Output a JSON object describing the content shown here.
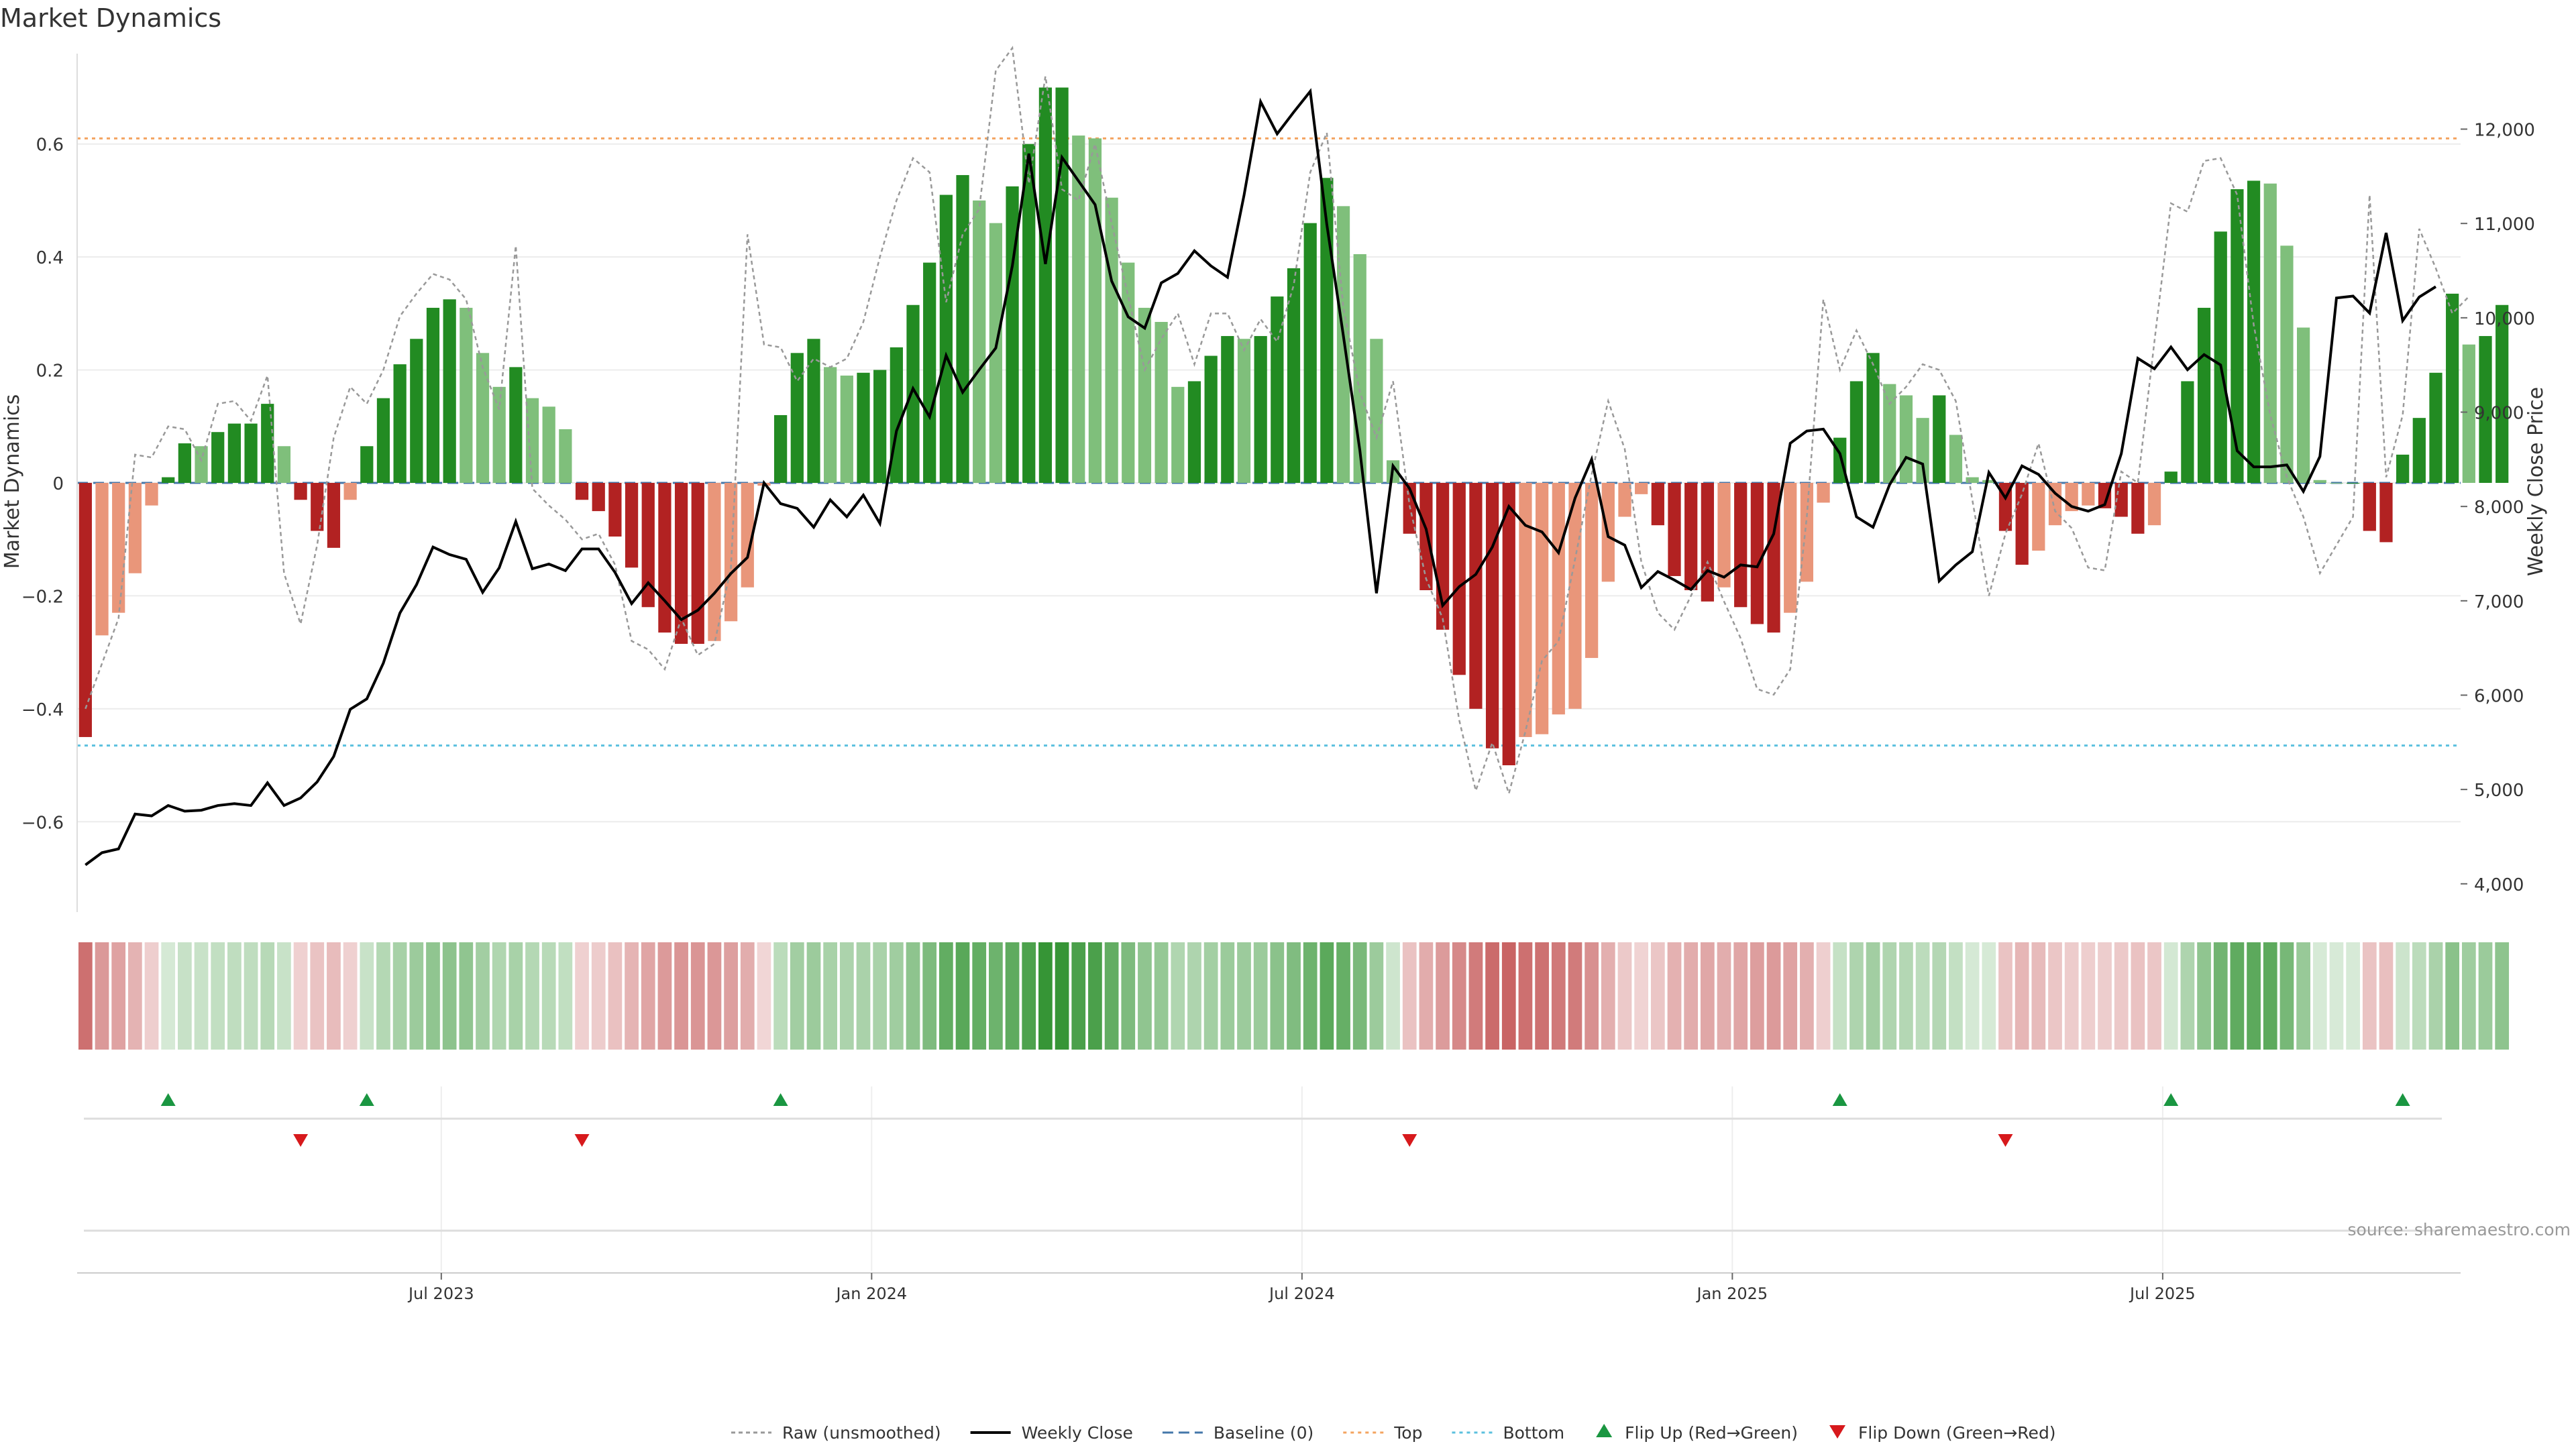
{
  "header": {
    "title": "Market Dynamics"
  },
  "footer": {
    "source": "source: sharemaestro.com"
  },
  "legend": [
    {
      "label": "Raw (unsmoothed)",
      "kind": "raw"
    },
    {
      "label": "Weekly Close",
      "kind": "close"
    },
    {
      "label": "Baseline (0)",
      "kind": "baseline"
    },
    {
      "label": "Top",
      "kind": "top"
    },
    {
      "label": "Bottom",
      "kind": "bottom"
    },
    {
      "label": "Flip Up (Red→Green)",
      "kind": "flipup"
    },
    {
      "label": "Flip Down (Green→Red)",
      "kind": "flipdown"
    }
  ],
  "colors": {
    "strong_green": "#228b22",
    "light_green": "#7fbf7b",
    "strong_red": "#b22222",
    "light_red": "#e9967a",
    "close_line": "#000000",
    "raw_line": "#999999",
    "baseline": "#4477aa",
    "top": "#f4a460",
    "bottom": "#5bc0de",
    "flip_up": "#1a9641",
    "flip_down": "#d7191c"
  },
  "chart_data": {
    "type": "bar",
    "title": "Market Dynamics",
    "ylabel": "Market Dynamics",
    "y2label": "Weekly Close Price",
    "ylim": [
      -0.76,
      0.76
    ],
    "y2lim": [
      3700,
      12800
    ],
    "yticks": [
      -0.6,
      -0.4,
      -0.2,
      0,
      0.2,
      0.4,
      0.6
    ],
    "yticklabels": [
      "−0.6",
      "−0.4",
      "−0.2",
      "0",
      "0.2",
      "0.4",
      "0.6"
    ],
    "y2ticks": [
      4000,
      5000,
      6000,
      7000,
      8000,
      9000,
      10000,
      11000,
      12000
    ],
    "y2ticklabels": [
      "4,000",
      "5,000",
      "6,000",
      "7,000",
      "8,000",
      "9,000",
      "10,000",
      "11,000",
      "12,000"
    ],
    "xticks": [
      "Jul 2023",
      "Jan 2024",
      "Jul 2024",
      "Jan 2025",
      "Jul 2025"
    ],
    "xtick_week_index": [
      22,
      48,
      74,
      100,
      126
    ],
    "top_level": 0.61,
    "bottom_level": -0.465,
    "baseline": 0,
    "grid": true,
    "legend_position": "bottom-center",
    "weeks": 144,
    "series": [
      {
        "name": "Market Dynamics",
        "values": [
          -0.45,
          -0.27,
          -0.23,
          -0.16,
          -0.04,
          0.01,
          0.07,
          0.065,
          0.09,
          0.105,
          0.105,
          0.14,
          0.065,
          -0.03,
          -0.085,
          -0.115,
          -0.03,
          0.065,
          0.15,
          0.21,
          0.255,
          0.31,
          0.325,
          0.31,
          0.23,
          0.17,
          0.205,
          0.15,
          0.135,
          0.095,
          -0.03,
          -0.05,
          -0.095,
          -0.15,
          -0.22,
          -0.265,
          -0.285,
          -0.285,
          -0.28,
          -0.245,
          -0.185,
          -0.005,
          0.12,
          0.23,
          0.255,
          0.205,
          0.19,
          0.195,
          0.2,
          0.24,
          0.315,
          0.39,
          0.51,
          0.545,
          0.5,
          0.46,
          0.525,
          0.6,
          0.7,
          0.7,
          0.615,
          0.61,
          0.505,
          0.39,
          0.31,
          0.285,
          0.17,
          0.18,
          0.225,
          0.26,
          0.255,
          0.26,
          0.33,
          0.38,
          0.46,
          0.54,
          0.49,
          0.405,
          0.255,
          0.04,
          -0.09,
          -0.19,
          -0.26,
          -0.34,
          -0.4,
          -0.47,
          -0.5,
          -0.45,
          -0.445,
          -0.41,
          -0.4,
          -0.31,
          -0.175,
          -0.06,
          -0.02,
          -0.075,
          -0.165,
          -0.19,
          -0.21,
          -0.185,
          -0.22,
          -0.25,
          -0.265,
          -0.23,
          -0.175,
          -0.035,
          0.08,
          0.18,
          0.23,
          0.175,
          0.155,
          0.115,
          0.155,
          0.085,
          0.01,
          0.005,
          -0.085,
          -0.145,
          -0.12,
          -0.075,
          -0.05,
          -0.04,
          -0.045,
          -0.06,
          -0.09,
          -0.075,
          0.02,
          0.18,
          0.31,
          0.445,
          0.52,
          0.535,
          0.53,
          0.42,
          0.275,
          0.005,
          0.0,
          0.0,
          -0.085,
          -0.105,
          0.05,
          0.115,
          0.195,
          0.335,
          0.245,
          0.26,
          0.315
        ]
      },
      {
        "name": "Raw (unsmoothed)",
        "values": [
          -0.4,
          -0.32,
          -0.24,
          0.05,
          0.045,
          0.1,
          0.095,
          0.04,
          0.14,
          0.145,
          0.11,
          0.19,
          -0.16,
          -0.25,
          -0.11,
          0.08,
          0.17,
          0.14,
          0.2,
          0.295,
          0.335,
          0.37,
          0.36,
          0.325,
          0.205,
          0.13,
          0.42,
          -0.01,
          -0.04,
          -0.065,
          -0.1,
          -0.09,
          -0.145,
          -0.28,
          -0.295,
          -0.33,
          -0.24,
          -0.305,
          -0.285,
          -0.15,
          0.44,
          0.245,
          0.24,
          0.18,
          0.22,
          0.205,
          0.22,
          0.285,
          0.4,
          0.5,
          0.575,
          0.55,
          0.32,
          0.44,
          0.485,
          0.73,
          0.77,
          0.53,
          0.72,
          0.52,
          0.5,
          0.6,
          0.46,
          0.33,
          0.2,
          0.255,
          0.3,
          0.21,
          0.3,
          0.3,
          0.235,
          0.29,
          0.25,
          0.35,
          0.55,
          0.62,
          0.31,
          0.16,
          0.08,
          0.18,
          -0.04,
          -0.17,
          -0.24,
          -0.42,
          -0.545,
          -0.46,
          -0.55,
          -0.44,
          -0.315,
          -0.28,
          -0.135,
          0.015,
          0.145,
          0.06,
          -0.14,
          -0.23,
          -0.26,
          -0.2,
          -0.14,
          -0.21,
          -0.275,
          -0.365,
          -0.375,
          -0.33,
          -0.06,
          0.325,
          0.2,
          0.27,
          0.21,
          0.14,
          0.17,
          0.21,
          0.2,
          0.145,
          -0.03,
          -0.2,
          -0.09,
          -0.02,
          0.07,
          -0.05,
          -0.08,
          -0.15,
          -0.155,
          0.02,
          0.0,
          0.25,
          0.495,
          0.48,
          0.57,
          0.575,
          0.51,
          0.28,
          0.12,
          0.01,
          -0.06,
          -0.16,
          -0.11,
          -0.06,
          0.51,
          0.01,
          0.12,
          0.45,
          0.38,
          0.3,
          0.33
        ]
      },
      {
        "name": "Weekly Close",
        "values": [
          4200,
          4330,
          4370,
          4740,
          4720,
          4830,
          4770,
          4780,
          4830,
          4850,
          4830,
          5070,
          4830,
          4910,
          5080,
          5350,
          5850,
          5960,
          6340,
          6870,
          7170,
          7570,
          7490,
          7440,
          7090,
          7350,
          7840,
          7340,
          7390,
          7320,
          7550,
          7550,
          7300,
          6970,
          7190,
          7000,
          6800,
          6900,
          7080,
          7290,
          7460,
          8250,
          8030,
          7980,
          7780,
          8070,
          7890,
          8120,
          7820,
          8800,
          9250,
          8950,
          9600,
          9210,
          9450,
          9680,
          10550,
          11740,
          10570,
          11700,
          11450,
          11200,
          10390,
          10010,
          9890,
          10370,
          10470,
          10710,
          10550,
          10430,
          11300,
          12290,
          11950,
          12180,
          12400,
          10990,
          9810,
          8590,
          7080,
          8430,
          8190,
          7760,
          6950,
          7150,
          7280,
          7570,
          8000,
          7800,
          7730,
          7510,
          8090,
          8500,
          7680,
          7590,
          7140,
          7310,
          7220,
          7120,
          7320,
          7250,
          7380,
          7360,
          7710,
          8670,
          8800,
          8820,
          8560,
          7890,
          7780,
          8230,
          8520,
          8450,
          7210,
          7380,
          7520,
          8360,
          8090,
          8430,
          8340,
          8140,
          8000,
          7950,
          8020,
          8560,
          9570,
          9460,
          9690,
          9450,
          9610,
          9500,
          8590,
          8420,
          8420,
          8440,
          8160,
          8530,
          10210,
          10230,
          10050,
          10900,
          9970,
          10220,
          10330
        ]
      }
    ]
  }
}
